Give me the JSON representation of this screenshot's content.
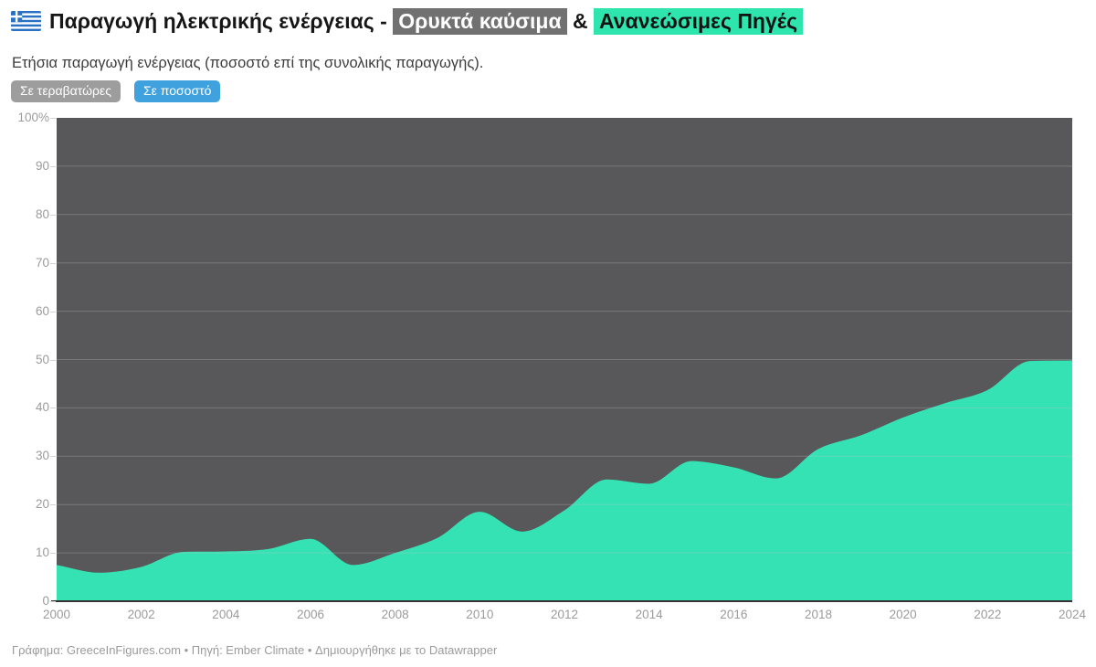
{
  "header": {
    "title_prefix": "Παραγωγή ηλεκτρικής ενέργειας - ",
    "fossil_highlight": "Ορυκτά καύσιμα",
    "ampersand": " & ",
    "renewables_highlight": "Ανανεώσιμες Πηγές",
    "subtitle": "Ετήσια παραγωγή ενέργειας (ποσοστό επί της συνολικής παραγωγής)."
  },
  "toolbar": {
    "terawatt_button": "Σε τεραβατώρες",
    "percent_button": "Σε ποσοστό"
  },
  "colors": {
    "renewables_area": "#35e2b4",
    "fossil_area": "#58585a",
    "renewables_highlight_bg": "#2ee5ae",
    "fossil_highlight_bg": "#717171",
    "active_button_bg": "#3fa1dd",
    "inactive_button_bg": "#9d9d9d",
    "axis_text": "#9b9b9b",
    "gridline": "#c4c4c4",
    "baseline": "#333333",
    "flag_blue": "#2a70c2"
  },
  "chart_data": {
    "type": "area",
    "stacked": true,
    "unit": "percent of total production",
    "title": "Παραγωγή ηλεκτρικής ενέργειας - Ορυκτά καύσιμα & Ανανεώσιμες Πηγές",
    "x": [
      2000,
      2001,
      2002,
      2003,
      2004,
      2005,
      2006,
      2007,
      2008,
      2009,
      2010,
      2011,
      2012,
      2013,
      2014,
      2015,
      2016,
      2017,
      2018,
      2019,
      2020,
      2021,
      2022,
      2023,
      2024
    ],
    "series": [
      {
        "name": "Ανανεώσιμες Πηγές",
        "color": "#35e2b4",
        "values": [
          7.5,
          5.9,
          7.1,
          10.2,
          10.3,
          10.8,
          12.9,
          7.5,
          10.0,
          13.1,
          18.5,
          14.4,
          18.8,
          25.2,
          24.3,
          29.0,
          27.7,
          25.4,
          31.5,
          34.3,
          38.0,
          41.0,
          43.7,
          49.7,
          49.8
        ]
      },
      {
        "name": "Ορυκτά καύσιμα",
        "color": "#58585a",
        "values": [
          92.5,
          94.1,
          92.9,
          89.8,
          89.7,
          89.2,
          87.1,
          92.5,
          90.0,
          86.9,
          81.5,
          85.6,
          81.2,
          74.8,
          75.7,
          71.0,
          72.3,
          74.6,
          68.5,
          65.7,
          62.0,
          59.0,
          56.3,
          50.3,
          50.2
        ]
      }
    ],
    "xlim": [
      2000,
      2024
    ],
    "ylim": [
      0,
      100
    ],
    "x_ticks": [
      2000,
      2002,
      2004,
      2006,
      2008,
      2010,
      2012,
      2014,
      2016,
      2018,
      2020,
      2022,
      2024
    ],
    "y_ticks": [
      0,
      10,
      20,
      30,
      40,
      50,
      60,
      70,
      80,
      90,
      100
    ],
    "y_tick_labels": [
      "0",
      "10",
      "20",
      "30",
      "40",
      "50",
      "60",
      "70",
      "80",
      "90",
      "100%"
    ],
    "grid": true,
    "legend": "inline-title-highlights"
  },
  "footer": {
    "credit": "Γράφημα: GreeceInFigures.com • Πηγή: Ember Climate • Δημιουργήθηκε με το Datawrapper"
  }
}
